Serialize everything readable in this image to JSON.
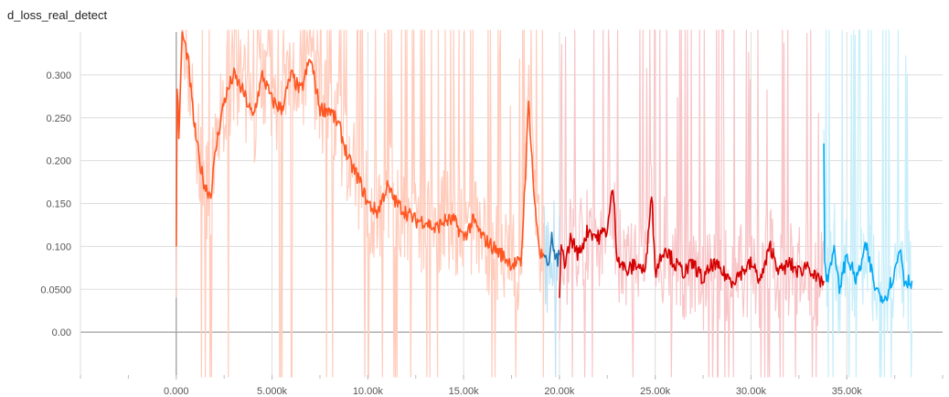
{
  "chart_data": {
    "type": "line",
    "title": "d_loss_real_detect",
    "xlabel": "",
    "ylabel": "",
    "xlim": [
      -5000,
      40000
    ],
    "ylim": [
      -0.05,
      0.35
    ],
    "grid": true,
    "legend": "none",
    "x_ticks": [
      0,
      5000,
      10000,
      15000,
      20000,
      25000,
      30000,
      35000
    ],
    "x_tick_labels": [
      "0.000",
      "5.000k",
      "10.00k",
      "15.00k",
      "20.00k",
      "25.00k",
      "30.00k",
      "35.00k"
    ],
    "y_ticks": [
      0,
      0.05,
      0.1,
      0.15,
      0.2,
      0.25,
      0.3
    ],
    "y_tick_labels": [
      "0.00",
      "0.0500",
      "0.100",
      "0.150",
      "0.200",
      "0.250",
      "0.300"
    ],
    "series": [
      {
        "color": "#ff5722",
        "raw_color": "#ffccbc",
        "x": [
          0,
          50,
          150,
          300,
          600,
          900,
          1200,
          1500,
          1800,
          2100,
          2500,
          3000,
          3500,
          4000,
          4500,
          5000,
          5500,
          6000,
          6500,
          7000,
          7500,
          8000,
          8500,
          9000,
          9500,
          10000,
          10500,
          11000,
          11500,
          12000,
          12500,
          13000,
          13500,
          14000,
          14500,
          15000,
          15500,
          16000,
          16500,
          17000,
          17500,
          18000,
          18400,
          18700,
          19000,
          19200
        ],
        "y": [
          0.1,
          0.3,
          0.22,
          0.35,
          0.32,
          0.25,
          0.2,
          0.17,
          0.16,
          0.22,
          0.27,
          0.3,
          0.28,
          0.25,
          0.3,
          0.27,
          0.26,
          0.3,
          0.28,
          0.32,
          0.26,
          0.26,
          0.24,
          0.2,
          0.18,
          0.15,
          0.14,
          0.17,
          0.15,
          0.14,
          0.13,
          0.13,
          0.12,
          0.13,
          0.13,
          0.11,
          0.13,
          0.11,
          0.1,
          0.09,
          0.08,
          0.08,
          0.27,
          0.15,
          0.09,
          0.09
        ]
      },
      {
        "color": "#1f77b4",
        "raw_color": "#bfe3f5",
        "x": [
          19200,
          19400,
          19600,
          19800,
          20000
        ],
        "y": [
          0.09,
          0.07,
          0.12,
          0.08,
          0.09
        ]
      },
      {
        "color": "#d50000",
        "raw_color": "#f8c5c8",
        "x": [
          20000,
          20100,
          20300,
          20600,
          21000,
          21500,
          22000,
          22500,
          22800,
          23000,
          23500,
          24000,
          24500,
          24800,
          25000,
          25500,
          26000,
          26500,
          27000,
          27500,
          28000,
          28500,
          29000,
          29500,
          30000,
          30500,
          31000,
          31500,
          32000,
          32500,
          33000,
          33400,
          33800
        ],
        "y": [
          0.04,
          0.1,
          0.08,
          0.11,
          0.09,
          0.12,
          0.11,
          0.12,
          0.17,
          0.09,
          0.07,
          0.08,
          0.07,
          0.17,
          0.07,
          0.1,
          0.08,
          0.07,
          0.08,
          0.06,
          0.08,
          0.07,
          0.06,
          0.07,
          0.08,
          0.06,
          0.1,
          0.07,
          0.08,
          0.07,
          0.08,
          0.06,
          0.06
        ]
      },
      {
        "color": "#03a9f4",
        "raw_color": "#c8eefa",
        "x": [
          33800,
          33850,
          34000,
          34300,
          34600,
          35000,
          35500,
          36000,
          36500,
          37000,
          37500,
          37800,
          38000,
          38400
        ],
        "y": [
          0.22,
          0.07,
          0.06,
          0.1,
          0.05,
          0.09,
          0.06,
          0.1,
          0.05,
          0.04,
          0.07,
          0.1,
          0.06,
          0.06
        ]
      }
    ]
  }
}
